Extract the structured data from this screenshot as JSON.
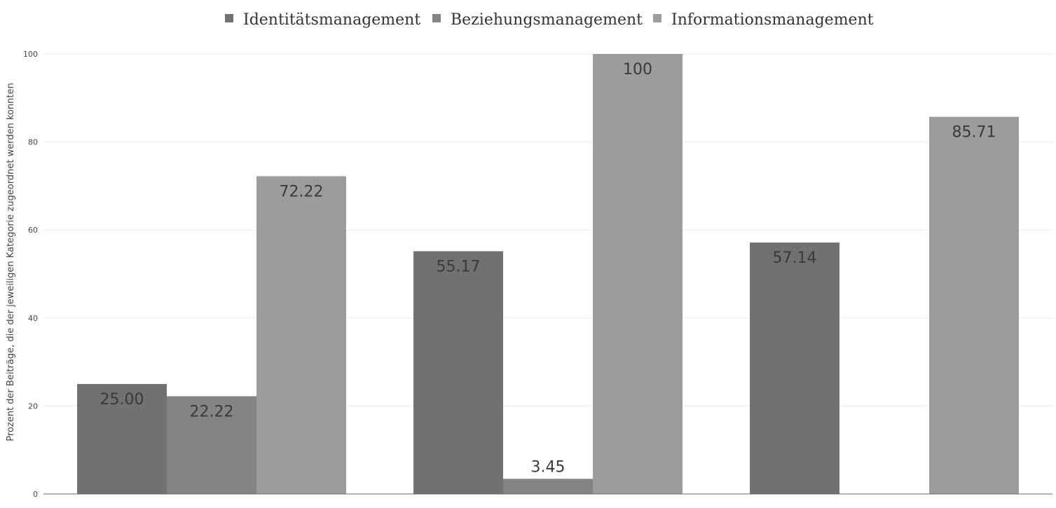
{
  "chart_data": {
    "type": "bar",
    "categories": [
      "",
      "",
      ""
    ],
    "series": [
      {
        "name": "Identitätsmanagement",
        "color": "#72716f",
        "values": [
          25.0,
          55.17,
          57.14
        ],
        "labels": [
          "25.00",
          "55.17",
          "57.14"
        ]
      },
      {
        "name": "Beziehungsmanagement",
        "color": "#858483",
        "values": [
          22.22,
          3.45,
          null
        ],
        "labels": [
          "22.22",
          "3.45",
          ""
        ]
      },
      {
        "name": "Informationsmanagement",
        "color": "#9c9c9a",
        "values": [
          72.22,
          100,
          85.71
        ],
        "labels": [
          "72.22",
          "100",
          "85.71"
        ]
      }
    ],
    "ylabel": "Prozent der Beiträge, die der jeweiligen Kategorie zugeordnet werden konnten",
    "xlabel": "",
    "ylim": [
      0,
      100
    ],
    "yticks": [
      0,
      20,
      40,
      60,
      80,
      100
    ],
    "ytick_labels": [
      "0",
      "20",
      "40",
      "60",
      "80",
      "100"
    ],
    "grid": true,
    "legend_position": "top-center"
  }
}
